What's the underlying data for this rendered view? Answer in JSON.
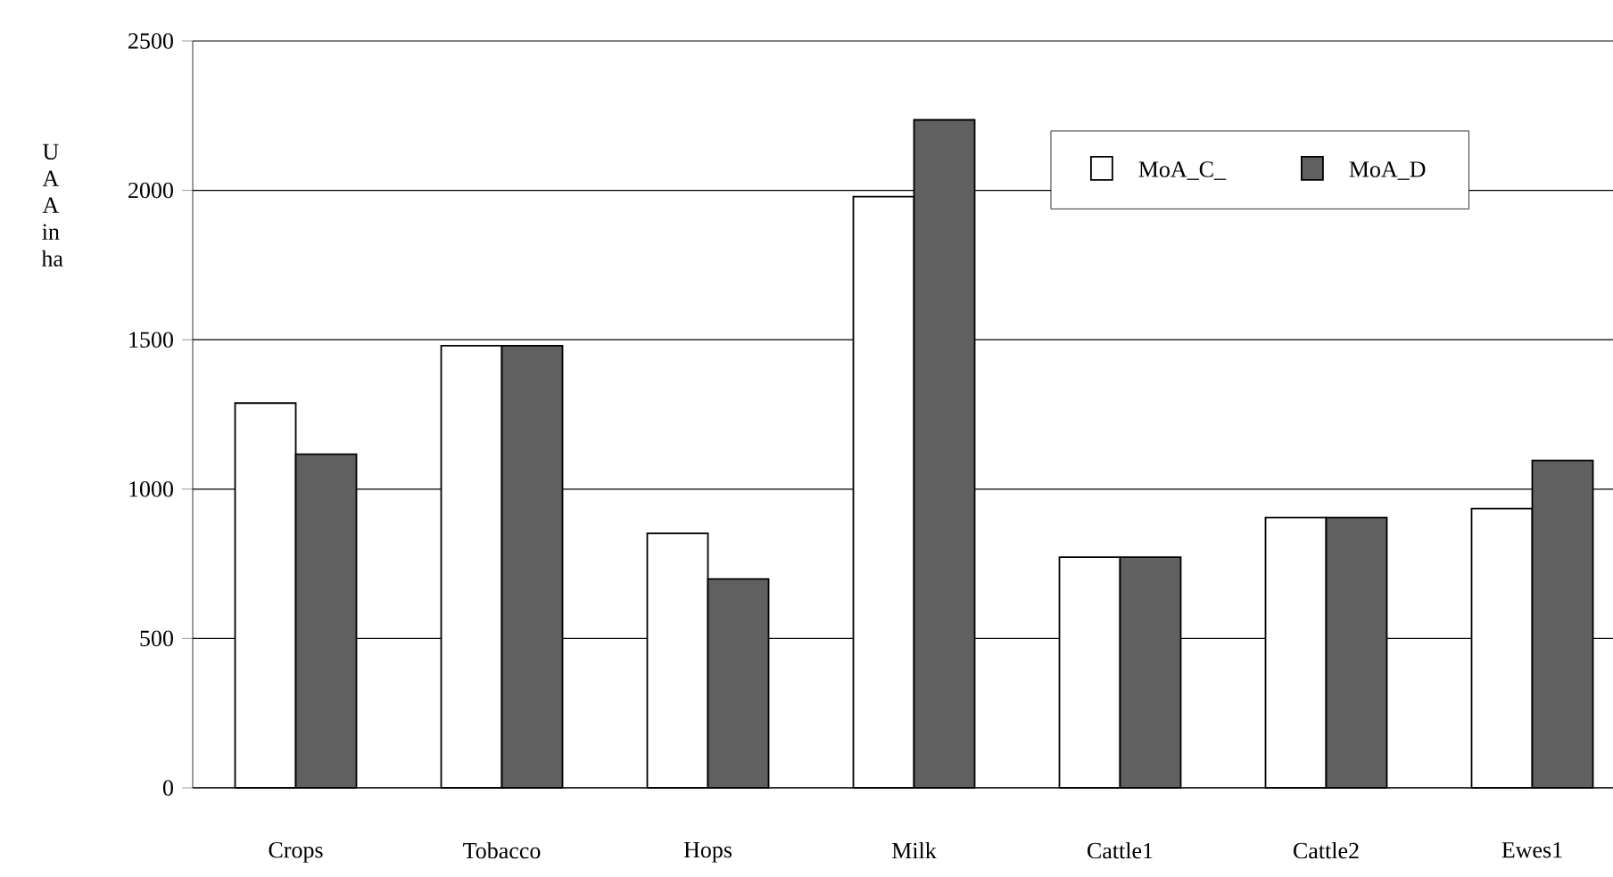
{
  "chart_data": {
    "type": "bar",
    "ylabel": "U A A in ha",
    "categories": [
      "Crops",
      "Tobacco",
      "Hops",
      "Milk",
      "Cattle1",
      "Cattle2",
      "Ewes1"
    ],
    "series": [
      {
        "name": "MoA_C_",
        "color": "#ffffff",
        "values": [
          1288,
          1480,
          852,
          1979,
          772,
          905,
          935
        ]
      },
      {
        "name": "MoA_D",
        "color": "#606060",
        "values": [
          1117,
          1480,
          699,
          2236,
          772,
          905,
          1096
        ]
      }
    ],
    "ylim": [
      0,
      2500
    ],
    "yticks": [
      0,
      500,
      1000,
      1500,
      2000,
      2500
    ],
    "grid": "y",
    "legend": "top right"
  }
}
